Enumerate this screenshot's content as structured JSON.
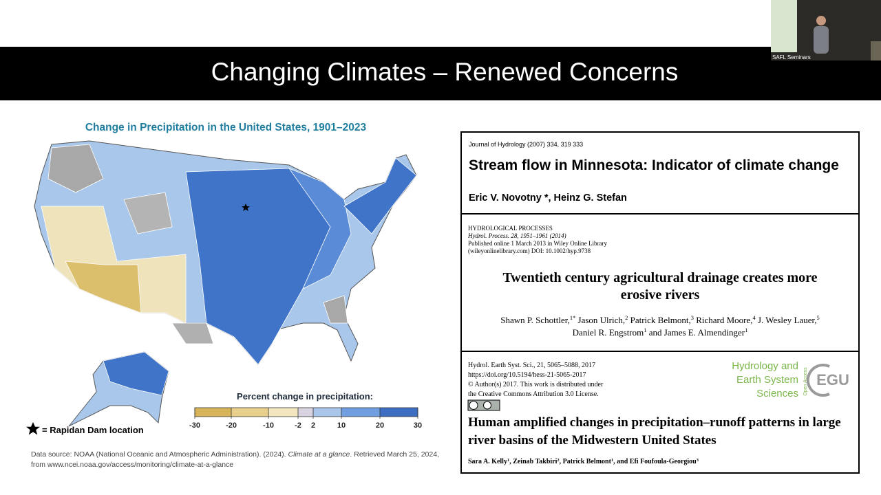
{
  "slide": {
    "title": "Changing Climates – Renewed Concerns"
  },
  "webcam": {
    "label": "SAFL Seminars"
  },
  "map": {
    "title": "Change in Precipitation in the United States, 1901–2023",
    "legend": {
      "title": "Percent change in precipitation:",
      "ticks": [
        -30,
        -20,
        -10,
        -2,
        2,
        10,
        20,
        30
      ]
    },
    "marker_label": "= Rapidan Dam location",
    "source": {
      "text": "Data source: NOAA (National Oceanic and Atmospheric Administration). (2024). ",
      "italic": "Climate at a glance",
      "rest": ". Retrieved March 25, 2024,",
      "line2": "from www.ncei.noaa.gov/access/monitoring/climate-at-a-glance"
    }
  },
  "papers": [
    {
      "journal": "Journal of Hydrology (2007) 334, 319 333",
      "title": "Stream flow in Minnesota: Indicator of climate change",
      "authors": "Eric V. Novotny *, Heinz G. Stefan"
    },
    {
      "header": [
        "HYDROLOGICAL PROCESSES",
        "Hydrol. Process. 28, 1951–1961 (2014)",
        "Published online 1 March 2013 in Wiley Online Library",
        "(wileyonlinelibrary.com) DOI: 10.1002/hyp.9738"
      ],
      "title": [
        "Twentieth century agricultural drainage creates more",
        "erosive rivers"
      ],
      "authors": [
        [
          {
            "name": "Shawn P. Schottler,",
            "sup": "1*"
          },
          {
            "name": " Jason Ulrich,",
            "sup": "2"
          },
          {
            "name": " Patrick Belmont,",
            "sup": "3"
          },
          {
            "name": " Richard Moore,",
            "sup": "4"
          },
          {
            "name": " J. Wesley Lauer,",
            "sup": "5"
          }
        ],
        [
          {
            "name": "Daniel R. Engstrom",
            "sup": "1"
          },
          {
            "name": " and James E. Almendinger",
            "sup": "1"
          }
        ]
      ]
    },
    {
      "header": [
        "Hydrol. Earth Syst. Sci., 21, 5065–5088, 2017",
        "https://doi.org/10.5194/hess-21-5065-2017",
        "© Author(s) 2017. This work is distributed under",
        "the Creative Commons Attribution 3.0 License."
      ],
      "journal_name": [
        "Hydrology and",
        "Earth System",
        "Sciences"
      ],
      "publisher": "EGU",
      "access": "Open Access",
      "title": [
        "Human amplified changes in precipitation–runoff patterns in large",
        "river basins of the Midwestern United States"
      ],
      "authors": [
        [
          {
            "name": "Sara A. Kelly",
            "sup": "1"
          },
          {
            "name": ", Zeinab Takbiri",
            "sup": "2"
          },
          {
            "name": ", Patrick Belmont",
            "sup": "1"
          },
          {
            "name": ", and Efi Foufoula-Georgiou",
            "sup": "3"
          }
        ]
      ]
    }
  ]
}
